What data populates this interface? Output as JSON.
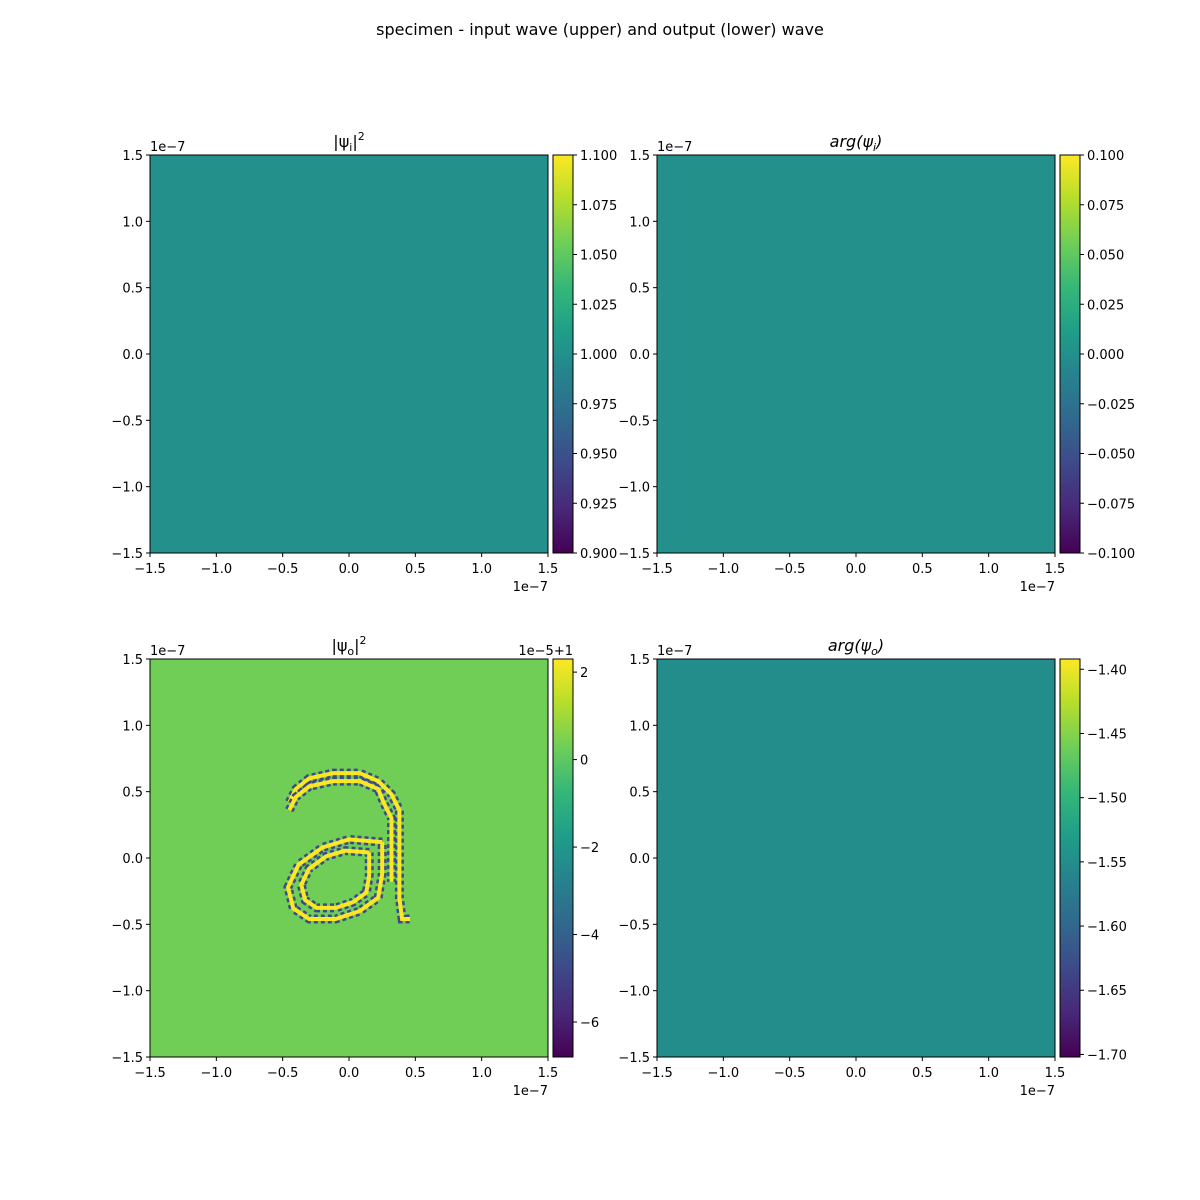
{
  "figure": {
    "suptitle": "specimen - input wave (upper) and output (lower) wave"
  },
  "colors": {
    "viridis": [
      "#440154",
      "#482878",
      "#3e4989",
      "#31688e",
      "#26828e",
      "#1f9e89",
      "#35b779",
      "#6ece58",
      "#b5de2b",
      "#fde725"
    ],
    "uniform_teal": "#21918c",
    "output_bg": "#5ac864",
    "ring_yellow": "#fde725",
    "ring_dark": "#3e4989"
  },
  "chart_data": [
    {
      "type": "heatmap",
      "id": "input_intensity",
      "title": "|ψᵢ|²",
      "title_parts": [
        "|ψ",
        "i",
        "|",
        "2"
      ],
      "x_range": [
        -1.5e-07,
        1.5e-07
      ],
      "y_range": [
        -1.5e-07,
        1.5e-07
      ],
      "xticks": [
        "−1.5",
        "−1.0",
        "−0.5",
        "0.0",
        "0.5",
        "1.0",
        "1.5"
      ],
      "yticks": [
        "−1.5",
        "−1.0",
        "−0.5",
        "0.0",
        "0.5",
        "1.0",
        "1.5"
      ],
      "tick_values": [
        -1.5,
        -1.0,
        -0.5,
        0.0,
        0.5,
        1.0,
        1.5
      ],
      "x_offset": "1e−7",
      "y_offset": "1e−7",
      "field": "uniform",
      "value": 1.0,
      "colorbar": {
        "vmin": 0.9,
        "vmax": 1.1,
        "offset": "",
        "ticks": [
          0.9,
          0.925,
          0.95,
          0.975,
          1.0,
          1.025,
          1.05,
          1.075,
          1.1
        ],
        "tick_labels": [
          "0.900",
          "0.925",
          "0.950",
          "0.975",
          "1.000",
          "1.025",
          "1.050",
          "1.075",
          "1.100"
        ]
      }
    },
    {
      "type": "heatmap",
      "id": "input_phase",
      "title": "arg(ψᵢ)",
      "title_parts": [
        "arg(ψ",
        "i",
        ")",
        ""
      ],
      "x_range": [
        -1.5e-07,
        1.5e-07
      ],
      "y_range": [
        -1.5e-07,
        1.5e-07
      ],
      "xticks": [
        "−1.5",
        "−1.0",
        "−0.5",
        "0.0",
        "0.5",
        "1.0",
        "1.5"
      ],
      "yticks": [
        "−1.5",
        "−1.0",
        "−0.5",
        "0.0",
        "0.5",
        "1.0",
        "1.5"
      ],
      "tick_values": [
        -1.5,
        -1.0,
        -0.5,
        0.0,
        0.5,
        1.0,
        1.5
      ],
      "x_offset": "1e−7",
      "y_offset": "1e−7",
      "field": "uniform",
      "value": 0.0,
      "colorbar": {
        "vmin": -0.1,
        "vmax": 0.1,
        "offset": "",
        "ticks": [
          -0.1,
          -0.075,
          -0.05,
          -0.025,
          0.0,
          0.025,
          0.05,
          0.075,
          0.1
        ],
        "tick_labels": [
          "−0.100",
          "−0.075",
          "−0.050",
          "−0.025",
          "0.000",
          "0.025",
          "0.050",
          "0.075",
          "0.100"
        ]
      }
    },
    {
      "type": "heatmap",
      "id": "output_intensity",
      "title": "|ψₒ|²",
      "title_parts": [
        "|ψ",
        "o",
        "|",
        "2"
      ],
      "x_range": [
        -1.5e-07,
        1.5e-07
      ],
      "y_range": [
        -1.5e-07,
        1.5e-07
      ],
      "xticks": [
        "−1.5",
        "−1.0",
        "−0.5",
        "0.0",
        "0.5",
        "1.0",
        "1.5"
      ],
      "yticks": [
        "−1.5",
        "−1.0",
        "−0.5",
        "0.0",
        "0.5",
        "1.0",
        "1.5"
      ],
      "tick_values": [
        -1.5,
        -1.0,
        -0.5,
        0.0,
        0.5,
        1.0,
        1.5
      ],
      "x_offset": "1e−7",
      "y_offset": "1e−7",
      "field": "letter-a-edge",
      "value": 0.3,
      "colorbar": {
        "vmin": -6.8,
        "vmax": 2.3,
        "offset": "1e−5+1",
        "ticks": [
          -6,
          -4,
          -2,
          0,
          2
        ],
        "tick_labels": [
          "−6",
          "−4",
          "−2",
          "0",
          "2"
        ]
      },
      "letter_a_outline_1e-7": {
        "bowl": [
          [
            0.25,
            0.12
          ],
          [
            0.0,
            0.14
          ],
          [
            -0.2,
            0.08
          ],
          [
            -0.38,
            -0.05
          ],
          [
            -0.46,
            -0.22
          ],
          [
            -0.42,
            -0.38
          ],
          [
            -0.3,
            -0.46
          ],
          [
            -0.1,
            -0.46
          ],
          [
            0.08,
            -0.4
          ],
          [
            0.22,
            -0.3
          ],
          [
            0.25,
            -0.12
          ],
          [
            0.25,
            0.12
          ]
        ],
        "hook": [
          [
            -0.45,
            0.42
          ],
          [
            -0.4,
            0.52
          ],
          [
            -0.3,
            0.6
          ],
          [
            -0.12,
            0.64
          ],
          [
            0.08,
            0.64
          ],
          [
            0.22,
            0.58
          ],
          [
            0.32,
            0.48
          ],
          [
            0.38,
            0.36
          ],
          [
            0.38,
            -0.12
          ],
          [
            0.38,
            -0.3
          ],
          [
            0.4,
            -0.46
          ],
          [
            0.46,
            -0.46
          ]
        ],
        "inner_offset": 0.06
      }
    },
    {
      "type": "heatmap",
      "id": "output_phase",
      "title": "arg(ψₒ)",
      "title_parts": [
        "arg(ψ",
        "o",
        ")",
        ""
      ],
      "x_range": [
        -1.5e-07,
        1.5e-07
      ],
      "y_range": [
        -1.5e-07,
        1.5e-07
      ],
      "xticks": [
        "−1.5",
        "−1.0",
        "−0.5",
        "0.0",
        "0.5",
        "1.0",
        "1.5"
      ],
      "yticks": [
        "−1.5",
        "−1.0",
        "−0.5",
        "0.0",
        "0.5",
        "1.0",
        "1.5"
      ],
      "tick_values": [
        -1.5,
        -1.0,
        -0.5,
        0.0,
        0.5,
        1.0,
        1.5
      ],
      "x_offset": "1e−7",
      "y_offset": "1e−7",
      "field": "uniform",
      "value": -1.5508,
      "colorbar": {
        "vmin": -1.702,
        "vmax": -1.392,
        "offset": "",
        "ticks": [
          -1.7,
          -1.65,
          -1.6,
          -1.55,
          -1.5,
          -1.45,
          -1.4
        ],
        "tick_labels": [
          "−1.70",
          "−1.65",
          "−1.60",
          "−1.55",
          "−1.50",
          "−1.45",
          "−1.40"
        ]
      }
    }
  ]
}
